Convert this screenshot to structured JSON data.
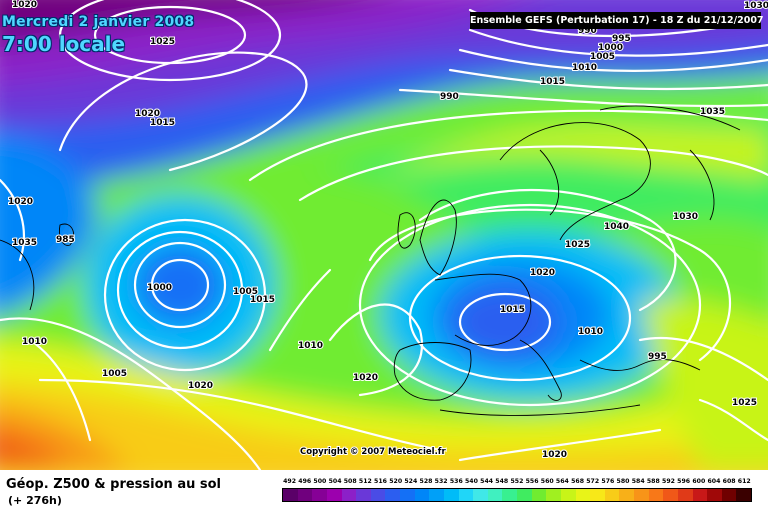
{
  "header": {
    "date": "Mercredi 2 janvier 2008",
    "time": "7:00 locale",
    "run_info": "Ensemble GEFS (Perturbation 17)  -  18 Z du 21/12/2007"
  },
  "map": {
    "copyright": "Copyright © 2007 Meteociel.fr",
    "high_pressure_centers_hpa": [
      1035,
      1040
    ],
    "low_pressure_centers_hpa": [
      995,
      1020
    ],
    "isobar_labels": [
      "1020",
      "1035",
      "1025",
      "1020",
      "1015",
      "1020",
      "985",
      "990",
      "995",
      "1000",
      "1005",
      "1010",
      "1015",
      "990",
      "1030",
      "1035",
      "1040",
      "1030",
      "1025",
      "1020",
      "1015",
      "1010",
      "995",
      "1000",
      "1005",
      "1015",
      "1010",
      "1020",
      "1010",
      "1005",
      "1020",
      "1025",
      "1020"
    ]
  },
  "footer": {
    "field_title": "Géop. Z500 & pression au sol",
    "lead_time": "(+ 276h)"
  },
  "legend": {
    "unit_note": "",
    "values": [
      "492",
      "496",
      "500",
      "504",
      "508",
      "512",
      "516",
      "520",
      "524",
      "528",
      "532",
      "536",
      "540",
      "544",
      "548",
      "552",
      "556",
      "560",
      "564",
      "568",
      "572",
      "576",
      "580",
      "584",
      "588",
      "592",
      "596",
      "600",
      "604",
      "608",
      "612"
    ],
    "colors": [
      "#5a0068",
      "#70007e",
      "#860096",
      "#9c00ae",
      "#8c20c8",
      "#6a38d8",
      "#4a4ce6",
      "#2c5ef0",
      "#1470f6",
      "#0086f8",
      "#00a0f8",
      "#00bcf8",
      "#20d6f8",
      "#40e8e8",
      "#40f0c0",
      "#38f090",
      "#40ec60",
      "#70ec30",
      "#a0f020",
      "#c8f418",
      "#e8f418",
      "#f8e818",
      "#f8cc18",
      "#f8b018",
      "#f89418",
      "#f87818",
      "#f05818",
      "#e03a18",
      "#c81818",
      "#a00808",
      "#700000",
      "#3a0000"
    ]
  }
}
